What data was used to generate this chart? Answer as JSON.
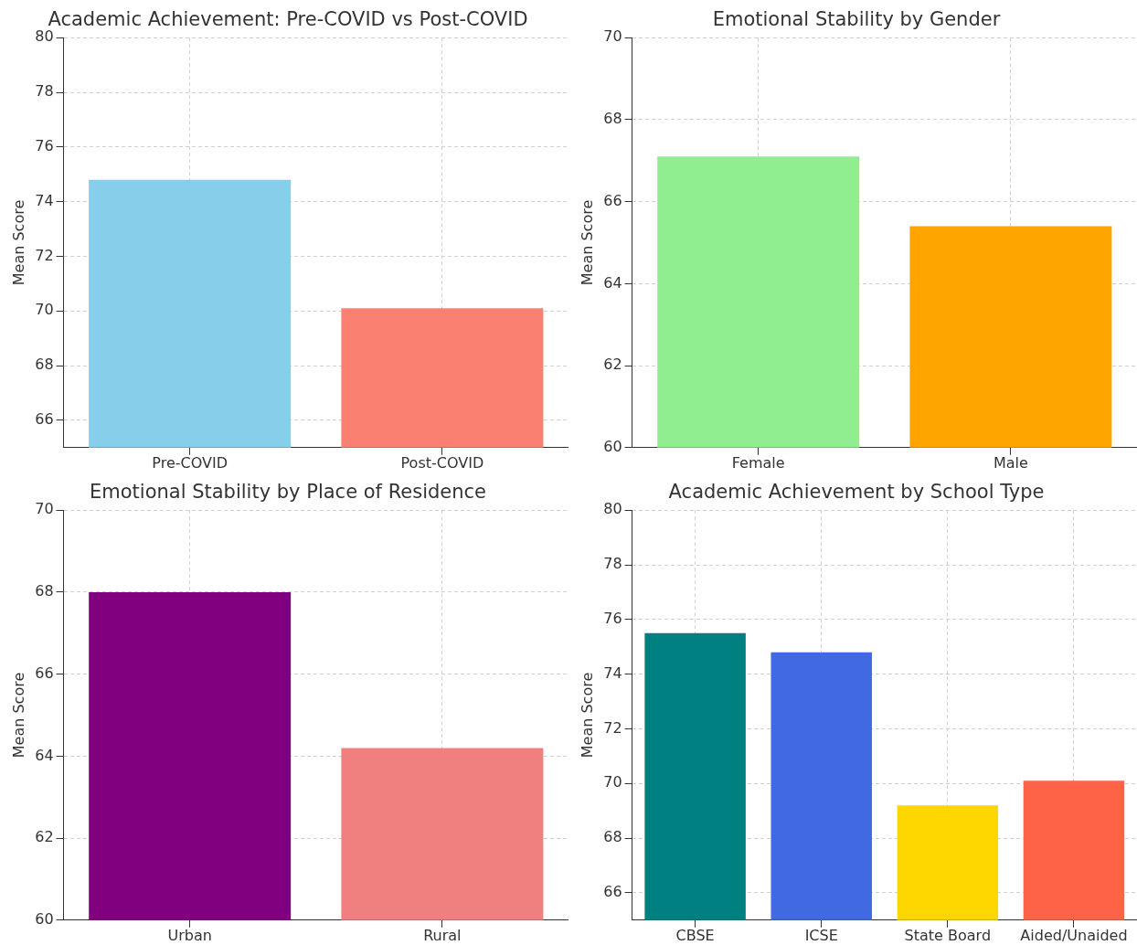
{
  "chart_data": [
    {
      "type": "bar",
      "title": "Academic Achievement: Pre-COVID vs Post-COVID",
      "categories": [
        "Pre-COVID",
        "Post-COVID"
      ],
      "values": [
        74.8,
        70.1
      ],
      "colors": [
        "#87ceeb",
        "#fa8072"
      ],
      "ylabel": "Mean Score",
      "ylim": [
        65,
        80
      ],
      "yticks": [
        66,
        68,
        70,
        72,
        74,
        76,
        78,
        80
      ],
      "grid": true
    },
    {
      "type": "bar",
      "title": "Emotional Stability by Gender",
      "categories": [
        "Female",
        "Male"
      ],
      "values": [
        67.1,
        65.4
      ],
      "colors": [
        "#90ee90",
        "#ffa500"
      ],
      "ylabel": "Mean Score",
      "ylim": [
        60,
        70
      ],
      "yticks": [
        60,
        62,
        64,
        66,
        68,
        70
      ],
      "grid": true
    },
    {
      "type": "bar",
      "title": "Emotional Stability by Place of Residence",
      "categories": [
        "Urban",
        "Rural"
      ],
      "values": [
        68.0,
        64.2
      ],
      "colors": [
        "#800080",
        "#f08080"
      ],
      "ylabel": "Mean Score",
      "ylim": [
        60,
        70
      ],
      "yticks": [
        60,
        62,
        64,
        66,
        68,
        70
      ],
      "grid": true
    },
    {
      "type": "bar",
      "title": "Academic Achievement by School Type",
      "categories": [
        "CBSE",
        "ICSE",
        "State Board",
        "Aided/Unaided"
      ],
      "values": [
        75.5,
        74.8,
        69.2,
        70.1
      ],
      "colors": [
        "#008080",
        "#4169e1",
        "#ffd700",
        "#ff6347"
      ],
      "ylabel": "Mean Score",
      "ylim": [
        65,
        80
      ],
      "yticks": [
        66,
        68,
        70,
        72,
        74,
        76,
        78,
        80
      ],
      "grid": true
    }
  ]
}
